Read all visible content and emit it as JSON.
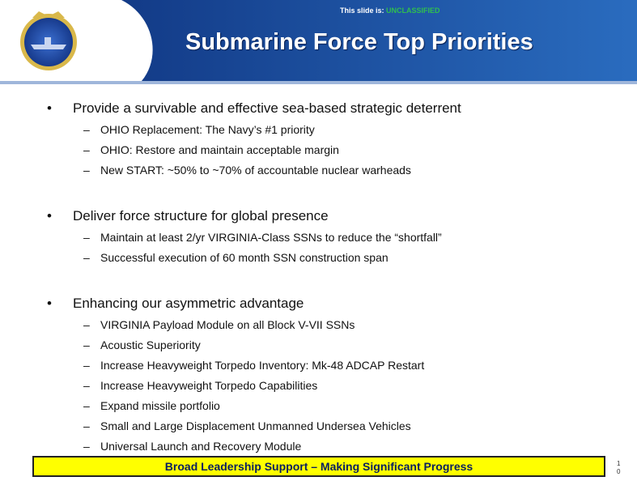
{
  "header": {
    "classification_label": "This slide is:",
    "classification": "UNCLASSIFIED",
    "title": "Submarine Force Top Priorities"
  },
  "bullets": [
    {
      "text": "Provide a survivable and effective sea-based strategic deterrent",
      "subs": [
        "OHIO Replacement: The Navy’s #1 priority",
        "OHIO: Restore and maintain acceptable margin",
        "New START: ~50% to ~70% of accountable nuclear warheads"
      ]
    },
    {
      "text": "Deliver force structure for global presence",
      "subs": [
        "Maintain at least 2/yr VIRGINIA-Class SSNs to reduce the “shortfall”",
        "Successful execution of 60 month SSN construction span"
      ]
    },
    {
      "text": "Enhancing our asymmetric advantage",
      "subs": [
        "VIRGINIA Payload Module on all Block V-VII SSNs",
        "Acoustic Superiority",
        "Increase Heavyweight Torpedo Inventory: Mk-48 ADCAP Restart",
        "Increase Heavyweight Torpedo Capabilities",
        "Expand missile portfolio",
        "Small and Large Displacement Unmanned Undersea Vehicles",
        "Universal Launch and Recovery Module"
      ]
    }
  ],
  "footer": {
    "banner": "Broad Leadership Support – Making Significant Progress",
    "page_number": "10"
  }
}
